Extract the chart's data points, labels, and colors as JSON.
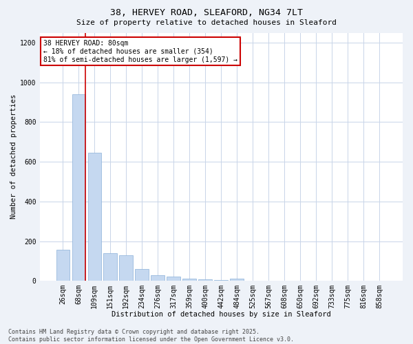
{
  "title1": "38, HERVEY ROAD, SLEAFORD, NG34 7LT",
  "title2": "Size of property relative to detached houses in Sleaford",
  "xlabel": "Distribution of detached houses by size in Sleaford",
  "ylabel": "Number of detached properties",
  "categories": [
    "26sqm",
    "68sqm",
    "109sqm",
    "151sqm",
    "192sqm",
    "234sqm",
    "276sqm",
    "317sqm",
    "359sqm",
    "400sqm",
    "442sqm",
    "484sqm",
    "525sqm",
    "567sqm",
    "608sqm",
    "650sqm",
    "692sqm",
    "733sqm",
    "775sqm",
    "816sqm",
    "858sqm"
  ],
  "values": [
    155,
    940,
    645,
    140,
    130,
    60,
    30,
    20,
    10,
    8,
    5,
    10,
    0,
    0,
    0,
    0,
    0,
    0,
    0,
    0,
    0
  ],
  "bar_color": "#c5d8f0",
  "bar_edge_color": "#8ab0d8",
  "red_line_x": 1.5,
  "highlight_line_color": "#cc0000",
  "ylim": [
    0,
    1250
  ],
  "yticks": [
    0,
    200,
    400,
    600,
    800,
    1000,
    1200
  ],
  "annotation_text": "38 HERVEY ROAD: 80sqm\n← 18% of detached houses are smaller (354)\n81% of semi-detached houses are larger (1,597) →",
  "annotation_box_color": "#cc0000",
  "footer1": "Contains HM Land Registry data © Crown copyright and database right 2025.",
  "footer2": "Contains public sector information licensed under the Open Government Licence v3.0.",
  "bg_color": "#eef2f8",
  "plot_bg_color": "#ffffff",
  "grid_color": "#c8d4e8",
  "title_fontsize": 9.5,
  "subtitle_fontsize": 8,
  "label_fontsize": 7.5,
  "tick_fontsize": 7,
  "annot_fontsize": 7,
  "footer_fontsize": 6
}
